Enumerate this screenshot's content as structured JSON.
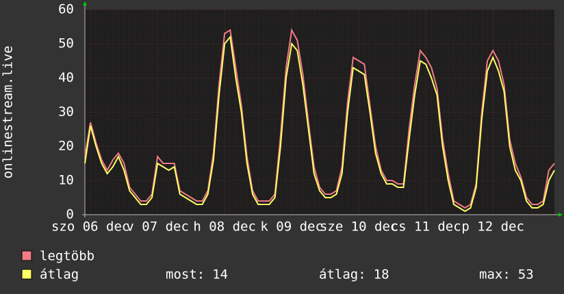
{
  "chart_data": {
    "type": "line",
    "y_label": "onlinestream.live",
    "x": [
      0,
      2,
      4,
      6,
      8,
      10,
      12,
      14,
      16,
      18,
      20,
      22,
      24,
      26,
      28,
      30,
      32,
      34,
      36,
      38,
      40,
      42,
      44,
      46,
      48,
      50,
      52,
      54,
      56,
      58,
      60,
      62,
      64,
      66,
      68,
      70,
      72,
      74,
      76,
      78,
      80,
      82,
      84,
      86,
      88,
      90,
      92,
      94,
      96,
      98,
      100,
      102,
      104,
      106,
      108,
      110,
      112,
      114,
      116,
      118,
      120,
      122,
      124,
      126,
      128,
      130,
      132,
      134,
      136,
      138,
      140,
      142,
      144,
      146,
      148,
      150,
      152,
      154,
      156,
      158,
      160,
      162,
      164,
      166,
      168
    ],
    "series": [
      {
        "name": "legtöbb",
        "color": "#f07c84",
        "values": [
          17,
          27,
          21,
          16,
          13,
          16,
          18,
          15,
          8,
          6,
          4,
          4,
          6,
          17,
          15,
          15,
          15,
          7,
          6,
          5,
          4,
          4,
          7,
          18,
          38,
          53,
          54,
          43,
          32,
          17,
          7,
          4,
          4,
          4,
          6,
          23,
          43,
          54,
          51,
          41,
          27,
          14,
          8,
          6,
          6,
          7,
          14,
          33,
          46,
          45,
          44,
          32,
          20,
          13,
          10,
          10,
          9,
          9,
          25,
          38,
          48,
          46,
          43,
          37,
          22,
          12,
          4,
          3,
          2,
          3,
          9,
          30,
          45,
          48,
          45,
          38,
          22,
          15,
          11,
          5,
          3,
          3,
          4,
          13,
          15
        ]
      },
      {
        "name": "átlag",
        "color": "#ffff66",
        "values": [
          15,
          26,
          20,
          15,
          12,
          14,
          17,
          13,
          7,
          5,
          3,
          3,
          5,
          15,
          14,
          13,
          14,
          6,
          5,
          4,
          3,
          3,
          6,
          16,
          35,
          50,
          52,
          40,
          30,
          15,
          6,
          3,
          3,
          3,
          5,
          20,
          40,
          50,
          48,
          38,
          25,
          12,
          7,
          5,
          5,
          6,
          12,
          30,
          43,
          42,
          41,
          30,
          18,
          12,
          9,
          9,
          8,
          8,
          22,
          35,
          45,
          44,
          40,
          35,
          20,
          10,
          3,
          2,
          1,
          2,
          8,
          28,
          42,
          46,
          42,
          36,
          20,
          13,
          10,
          4,
          2,
          2,
          3,
          10,
          13
        ]
      }
    ],
    "xlim": [
      0,
      168
    ],
    "xticks": [
      {
        "value": 2,
        "label": "szo 06 dec"
      },
      {
        "value": 26,
        "label": "v 07 dec"
      },
      {
        "value": 50,
        "label": "h 08 dec"
      },
      {
        "value": 74,
        "label": "k 09 dec"
      },
      {
        "value": 98,
        "label": "sze 10 dec"
      },
      {
        "value": 122,
        "label": "cs 11 dec"
      },
      {
        "value": 146,
        "label": "p 12 dec"
      }
    ],
    "ylim": [
      0,
      60
    ],
    "yticks": [
      0,
      10,
      20,
      30,
      40,
      50,
      60
    ],
    "grid": true,
    "stats": [
      {
        "label": "most:",
        "value": 14
      },
      {
        "label": "átlag:",
        "value": 18
      },
      {
        "label": "max:",
        "value": 53
      }
    ]
  }
}
